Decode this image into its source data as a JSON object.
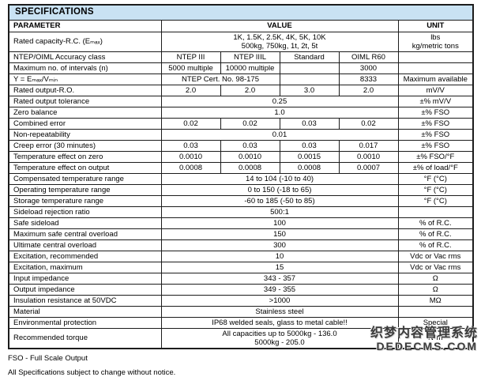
{
  "page": {
    "title": "SPECIFICATIONS",
    "notes": [
      "FSO - Full Scale Output",
      "All Specifications subject to change without notice."
    ],
    "watermark": {
      "line1": "织梦内容管理系统",
      "line2": "DEDECMS.COM"
    }
  },
  "colors": {
    "header_bg": "#c9e2f3",
    "border": "#1c1c1c",
    "text": "#000000"
  },
  "table": {
    "header": {
      "parameter": "PARAMETER",
      "value": "VALUE",
      "unit": "UNIT"
    },
    "rows": [
      {
        "cells": [
          {
            "t": "Rated capacity-R.C. (Eₘₐₓ)",
            "s": 1
          },
          {
            "t": "1K, 1.5K, 2.5K, 4K, 5K, 10K\n500kg, 750kg, 1t, 2t, 5t",
            "s": 4
          },
          {
            "t": "lbs\nkg/metric tons",
            "s": 1
          }
        ]
      },
      {
        "cells": [
          {
            "t": "NTEP/OIML Accuracy class",
            "s": 1
          },
          {
            "t": "NTEP III",
            "s": 1
          },
          {
            "t": "NTEP IIIL",
            "s": 1
          },
          {
            "t": "Standard",
            "s": 1
          },
          {
            "t": "OIML R60",
            "s": 1
          },
          {
            "t": "",
            "s": 1
          }
        ]
      },
      {
        "cells": [
          {
            "t": "Maximum no. of intervals (n)",
            "s": 1
          },
          {
            "t": "5000 multiple",
            "s": 1
          },
          {
            "t": "10000 multiple",
            "s": 1
          },
          {
            "t": "",
            "s": 1
          },
          {
            "t": "3000",
            "s": 1
          },
          {
            "t": "",
            "s": 1
          }
        ]
      },
      {
        "cells": [
          {
            "t": "Y = Eₘₐₓ/Vₘᵢₙ",
            "s": 1
          },
          {
            "t": "NTEP Cert. No. 98-175",
            "s": 2
          },
          {
            "t": "",
            "s": 1
          },
          {
            "t": "8333",
            "s": 1
          },
          {
            "t": "Maximum available",
            "s": 1
          }
        ]
      },
      {
        "cells": [
          {
            "t": "Rated output-R.O.",
            "s": 1
          },
          {
            "t": "2.0",
            "s": 1
          },
          {
            "t": "2.0",
            "s": 1
          },
          {
            "t": "3.0",
            "s": 1
          },
          {
            "t": "2.0",
            "s": 1
          },
          {
            "t": "mV/V",
            "s": 1
          }
        ]
      },
      {
        "cells": [
          {
            "t": "Rated output tolerance",
            "s": 1
          },
          {
            "t": "0.25",
            "s": 4
          },
          {
            "t": "±% mV/V",
            "s": 1
          }
        ]
      },
      {
        "cells": [
          {
            "t": "Zero balance",
            "s": 1
          },
          {
            "t": "1.0",
            "s": 4
          },
          {
            "t": "±% FSO",
            "s": 1
          }
        ]
      },
      {
        "cells": [
          {
            "t": "Combined error",
            "s": 1
          },
          {
            "t": "0.02",
            "s": 1
          },
          {
            "t": "0.02",
            "s": 1
          },
          {
            "t": "0.03",
            "s": 1
          },
          {
            "t": "0.02",
            "s": 1
          },
          {
            "t": "±% FSO",
            "s": 1
          }
        ]
      },
      {
        "cells": [
          {
            "t": "Non-repeatability",
            "s": 1
          },
          {
            "t": "0.01",
            "s": 4
          },
          {
            "t": "±% FSO",
            "s": 1
          }
        ]
      },
      {
        "cells": [
          {
            "t": "Creep error (30 minutes)",
            "s": 1
          },
          {
            "t": "0.03",
            "s": 1
          },
          {
            "t": "0.03",
            "s": 1
          },
          {
            "t": "0.03",
            "s": 1
          },
          {
            "t": "0.017",
            "s": 1
          },
          {
            "t": "±% FSO",
            "s": 1
          }
        ]
      },
      {
        "cells": [
          {
            "t": "Temperature effect on zero",
            "s": 1
          },
          {
            "t": "0.0010",
            "s": 1
          },
          {
            "t": "0.0010",
            "s": 1
          },
          {
            "t": "0.0015",
            "s": 1
          },
          {
            "t": "0.0010",
            "s": 1
          },
          {
            "t": "±% FSO/°F",
            "s": 1
          }
        ]
      },
      {
        "cells": [
          {
            "t": "Temperature effect on output",
            "s": 1
          },
          {
            "t": "0.0008",
            "s": 1
          },
          {
            "t": "0.0008",
            "s": 1
          },
          {
            "t": "0.0008",
            "s": 1
          },
          {
            "t": "0.0007",
            "s": 1
          },
          {
            "t": "±% of load/°F",
            "s": 1
          }
        ]
      },
      {
        "cells": [
          {
            "t": "Compensated temperature range",
            "s": 1
          },
          {
            "t": "14 to 104 (-10 to 40)",
            "s": 4
          },
          {
            "t": "°F (°C)",
            "s": 1
          }
        ]
      },
      {
        "cells": [
          {
            "t": "Operating temperature range",
            "s": 1
          },
          {
            "t": "0 to 150 (-18 to 65)",
            "s": 4
          },
          {
            "t": "°F (°C)",
            "s": 1
          }
        ]
      },
      {
        "cells": [
          {
            "t": "Storage temperature range",
            "s": 1
          },
          {
            "t": "-60 to 185 (-50 to 85)",
            "s": 4
          },
          {
            "t": "°F (°C)",
            "s": 1
          }
        ]
      },
      {
        "cells": [
          {
            "t": "Sideload rejection ratio",
            "s": 1
          },
          {
            "t": "500:1",
            "s": 4
          },
          {
            "t": "",
            "s": 1
          }
        ]
      },
      {
        "cells": [
          {
            "t": "Safe sideload",
            "s": 1
          },
          {
            "t": "100",
            "s": 4
          },
          {
            "t": "% of R.C.",
            "s": 1
          }
        ]
      },
      {
        "cells": [
          {
            "t": "Maximum safe central overload",
            "s": 1
          },
          {
            "t": "150",
            "s": 4
          },
          {
            "t": "% of R.C.",
            "s": 1
          }
        ]
      },
      {
        "cells": [
          {
            "t": "Ultimate central overload",
            "s": 1
          },
          {
            "t": "300",
            "s": 4
          },
          {
            "t": "% of R.C.",
            "s": 1
          }
        ]
      },
      {
        "cells": [
          {
            "t": "Excitation, recommended",
            "s": 1
          },
          {
            "t": "10",
            "s": 4
          },
          {
            "t": "Vdc or Vac rms",
            "s": 1
          }
        ]
      },
      {
        "cells": [
          {
            "t": "Excitation, maximum",
            "s": 1
          },
          {
            "t": "15",
            "s": 4
          },
          {
            "t": "Vdc or Vac rms",
            "s": 1
          }
        ]
      },
      {
        "cells": [
          {
            "t": "Input impedance",
            "s": 1
          },
          {
            "t": "343 - 357",
            "s": 4
          },
          {
            "t": "Ω",
            "s": 1
          }
        ]
      },
      {
        "cells": [
          {
            "t": "Output impedance",
            "s": 1
          },
          {
            "t": "349 - 355",
            "s": 4
          },
          {
            "t": "Ω",
            "s": 1
          }
        ]
      },
      {
        "cells": [
          {
            "t": "Insulation resistance at 50VDC",
            "s": 1
          },
          {
            "t": ">1000",
            "s": 4
          },
          {
            "t": "MΩ",
            "s": 1
          }
        ]
      },
      {
        "cells": [
          {
            "t": "Material",
            "s": 1
          },
          {
            "t": "Stainless steel",
            "s": 4
          },
          {
            "t": "",
            "s": 1
          }
        ]
      },
      {
        "cells": [
          {
            "t": "Environmental protection",
            "s": 1
          },
          {
            "t": "IP68 welded seals, glass to metal cable!!",
            "s": 4
          },
          {
            "t": "Special",
            "s": 1
          }
        ]
      },
      {
        "cells": [
          {
            "t": "Recommended torque",
            "s": 1
          },
          {
            "t": "All capacities up to 5000kg - 136.0\n5000kg - 205.0",
            "s": 4
          },
          {
            "t": "N*m",
            "s": 1
          }
        ]
      }
    ]
  }
}
